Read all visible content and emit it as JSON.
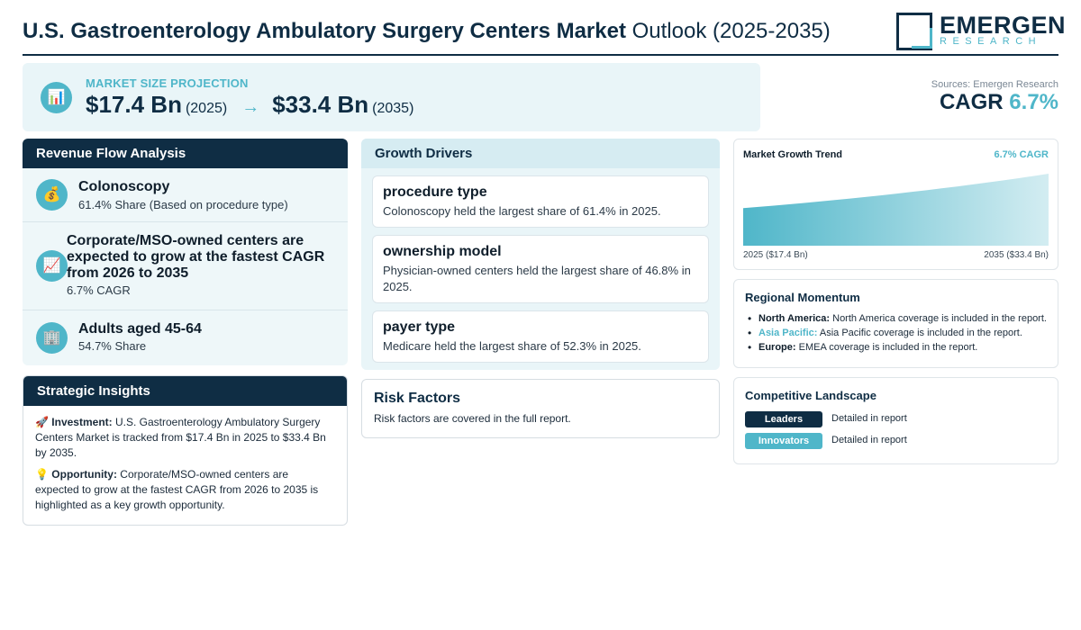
{
  "header": {
    "title_bold": "U.S. Gastroenterology Ambulatory Surgery Centers Market",
    "title_light": "Outlook (2025-2035)",
    "logo_main": "EMERGEN",
    "logo_sub": "RESEARCH"
  },
  "projection": {
    "icon": "bar-chart-icon",
    "label": "MARKET SIZE PROJECTION",
    "start_value": "$17.4 Bn",
    "start_year": "(2025)",
    "arrow": "→",
    "end_value": "$33.4 Bn",
    "end_year": "(2035)"
  },
  "sources": "Sources: Emergen Research",
  "cagr": {
    "label": "CAGR",
    "value": "6.7%"
  },
  "revenue_flow": {
    "title": "Revenue Flow Analysis",
    "items": [
      {
        "icon": "money-bag-icon",
        "glyph": "💰",
        "title": "Colonoscopy",
        "sub": "61.4% Share (Based on procedure type)"
      },
      {
        "icon": "trend-chart-icon",
        "glyph": "📈",
        "title": "Corporate/MSO-owned centers are expected to grow at the fastest CAGR from 2026 to 2035",
        "sub": "6.7% CAGR"
      },
      {
        "icon": "building-icon",
        "glyph": "🏢",
        "title": "Adults aged 45-64",
        "sub": "54.7% Share"
      }
    ]
  },
  "insights": {
    "title": "Strategic Insights",
    "investment_icon": "🚀",
    "investment_label": "Investment:",
    "investment_text": " U.S. Gastroenterology Ambulatory Surgery Centers Market is tracked from $17.4 Bn in 2025 to $33.4 Bn by 2035.",
    "opportunity_icon": "💡",
    "opportunity_label": "Opportunity:",
    "opportunity_text": " Corporate/MSO-owned centers are expected to grow at the fastest CAGR from 2026 to 2035 is highlighted as a key growth opportunity."
  },
  "growth_drivers": {
    "title": "Growth Drivers",
    "items": [
      {
        "title": "procedure type",
        "desc": "Colonoscopy held the largest share of 61.4% in 2025."
      },
      {
        "title": "ownership model",
        "desc": "Physician-owned centers held the largest share of 46.8% in 2025."
      },
      {
        "title": "payer type",
        "desc": "Medicare held the largest share of 52.3% in 2025."
      }
    ]
  },
  "risk": {
    "title": "Risk Factors",
    "desc": "Risk factors are covered in the full report."
  },
  "trend": {
    "title": "Market Growth Trend",
    "cagr_label": "6.7% CAGR",
    "left_label": "2025 ($17.4 Bn)",
    "right_label": "2035 ($33.4 Bn)",
    "color": "#4fb6c9"
  },
  "chart_data": {
    "type": "area",
    "x": [
      2025,
      2035
    ],
    "values": [
      17.4,
      33.4
    ],
    "title": "Market Growth Trend",
    "xlabel": "",
    "ylabel": ""
  },
  "regional": {
    "title": "Regional Momentum",
    "items": [
      {
        "name": "North America:",
        "text": " North America coverage is included in the report."
      },
      {
        "name": "Asia Pacific:",
        "text": " Asia Pacific coverage is included in the report."
      },
      {
        "name": "Europe:",
        "text": " EMEA coverage is included in the report."
      }
    ]
  },
  "competitive": {
    "title": "Competitive Landscape",
    "rows": [
      {
        "badge": "Leaders",
        "desc": "Detailed in report"
      },
      {
        "badge": "Innovators",
        "desc": "Detailed in report"
      }
    ]
  },
  "colors": {
    "navy": "#0f2d44",
    "accent": "#4fb6c9",
    "panel": "#e9f5f8"
  }
}
